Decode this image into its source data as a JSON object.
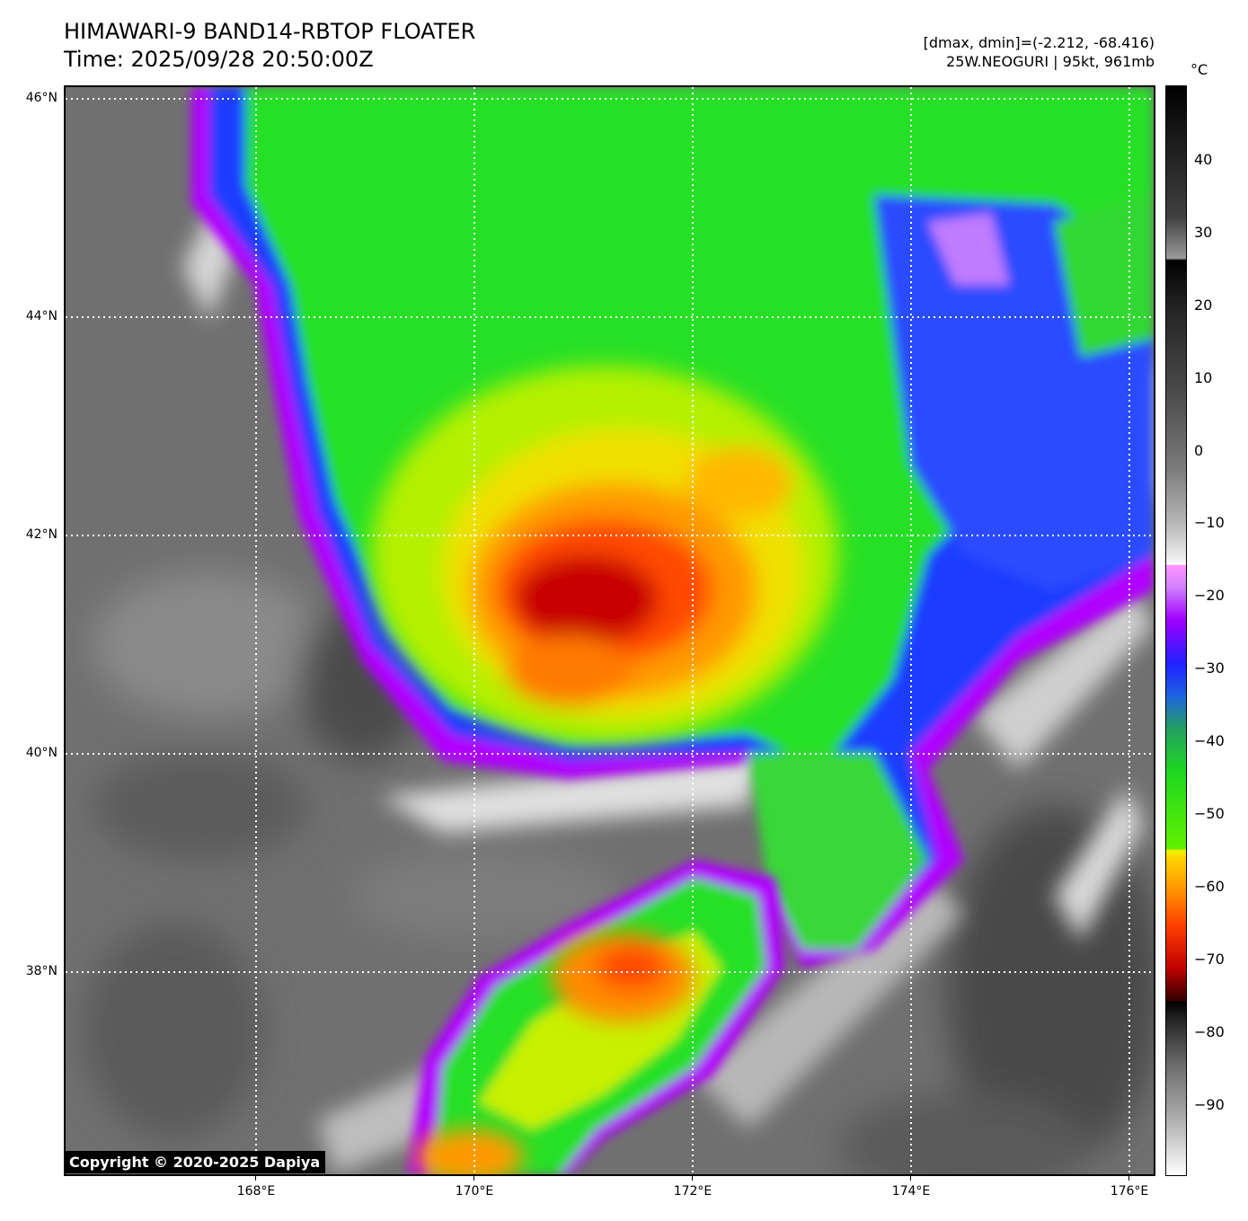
{
  "header": {
    "title_line1": "HIMAWARI-9 BAND14-RBTOP FLOATER",
    "title_line2": "Time: 2025/09/28 20:50:00Z",
    "stats": "[dmax, dmin]=(-2.212, -68.416)",
    "storm": "25W.NEOGURI | 95kt, 961mb"
  },
  "map": {
    "lat_labels": [
      "46°N",
      "44°N",
      "42°N",
      "40°N",
      "38°N"
    ],
    "lon_labels": [
      "168°E",
      "170°E",
      "172°E",
      "174°E",
      "176°E"
    ],
    "copyright": "Copyright © 2020-2025 Dapiya"
  },
  "colorbar": {
    "unit": "°C",
    "ticks": [
      "40",
      "30",
      "20",
      "10",
      "0",
      "−10",
      "−20",
      "−30",
      "−40",
      "−50",
      "−60",
      "−70",
      "−80",
      "−90"
    ]
  },
  "colors": {
    "background_gray": "#6e6e6e",
    "cold_top_red": "#c80000",
    "green": "#2ee62e",
    "blue": "#1e1eff",
    "violet": "#a000ff"
  }
}
